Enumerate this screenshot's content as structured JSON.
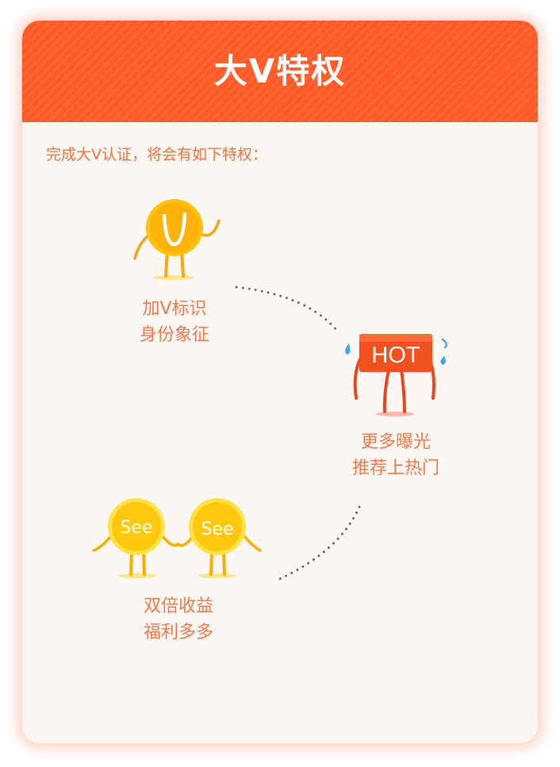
{
  "header": {
    "title": "大V特权"
  },
  "intro": {
    "text": "完成大V认证，将会有如下特权："
  },
  "features": [
    {
      "line1": "加V标识",
      "line2": "身份象征",
      "icon": "v-badge-mascot-icon"
    },
    {
      "line1": "更多曝光",
      "line2": "推荐上热门",
      "icon": "hot-sign-mascot-icon",
      "sign_text": "HOT"
    },
    {
      "line1": "双倍收益",
      "line2": "福利多多",
      "icon": "see-coins-mascot-icon",
      "coin_text": "See"
    }
  ],
  "colors": {
    "accent": "#ff5a26",
    "text": "#f07a4c",
    "card_bg": "#fcf7f3",
    "coin": "#ffc20e",
    "dots": "#6b6b6b"
  }
}
